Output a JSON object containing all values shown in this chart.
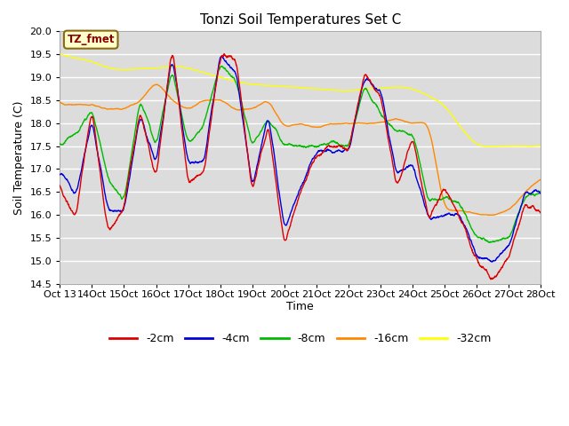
{
  "title": "Tonzi Soil Temperatures Set C",
  "xlabel": "Time",
  "ylabel": "Soil Temperature (C)",
  "ylim": [
    14.5,
    20.0
  ],
  "plot_bg_color": "#dcdcdc",
  "annotation_text": "TZ_fmet",
  "annotation_color": "#8b0000",
  "annotation_bg": "#ffffcc",
  "annotation_edge": "#8b6914",
  "colors": {
    "-2cm": "#dd0000",
    "-4cm": "#0000dd",
    "-8cm": "#00bb00",
    "-16cm": "#ff8800",
    "-32cm": "#ffff00"
  },
  "x_tick_labels": [
    "Oct 13",
    "Oct 14",
    "Oct 15",
    "Oct 16",
    "Oct 17",
    "Oct 18",
    "Oct 19",
    "Oct 20",
    "Oct 21",
    "Oct 22",
    "Oct 23",
    "Oct 24",
    "Oct 25",
    "Oct 26",
    "Oct 27",
    "Oct 28"
  ],
  "n_points": 2000
}
